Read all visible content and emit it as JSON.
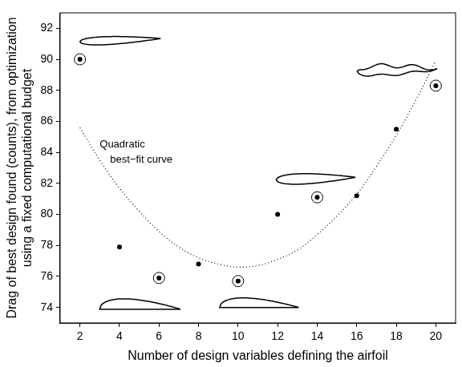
{
  "chart_data": {
    "type": "scatter",
    "x_label": "Number of design variables defining the airfoil",
    "y_label": [
      "Drag of best design found (counts), from optimization",
      "using a fixed computational budget"
    ],
    "xlim": [
      1,
      21
    ],
    "xticks": [
      2,
      4,
      6,
      8,
      10,
      12,
      14,
      16,
      18,
      20
    ],
    "ylim": [
      73,
      93
    ],
    "yticks": [
      74,
      76,
      78,
      80,
      82,
      84,
      86,
      88,
      90,
      92
    ],
    "grid": false,
    "series": [
      {
        "marker": "dot",
        "color": "#000000",
        "x": [
          4,
          8,
          12,
          16,
          18
        ],
        "values": [
          77.9,
          76.8,
          80,
          81.2,
          85.5
        ]
      },
      {
        "marker": "circled_dot",
        "color": "#000000",
        "x": [
          2,
          6,
          10,
          14,
          20
        ],
        "values": [
          90,
          75.9,
          75.7,
          81.1,
          88.3
        ]
      },
      {
        "type": "line",
        "line_style": "dotted",
        "color": "#000000",
        "x": [
          2,
          3,
          4,
          5,
          6,
          7,
          8,
          9,
          10,
          11,
          12,
          13,
          14,
          15,
          16,
          17,
          18,
          19,
          20
        ],
        "values": [
          85.6,
          83.5,
          81.7,
          80.2,
          78.9,
          77.9,
          77.2,
          76.8,
          76.6,
          76.7,
          77.1,
          77.7,
          78.7,
          79.9,
          81.3,
          83.1,
          85.1,
          87.4,
          89.9
        ]
      }
    ],
    "annotations": [
      {
        "text": [
          "Quadratic",
          "best−fit curve"
        ]
      }
    ]
  }
}
